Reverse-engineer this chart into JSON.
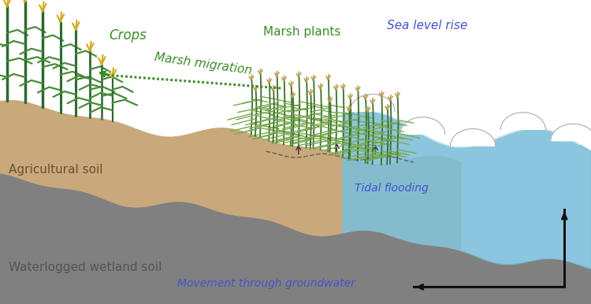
{
  "bg_color": "#ffffff",
  "soil_brown_color": "#c9a87c",
  "soil_grey_color": "#808080",
  "sea_blue_color": "#7bbfda",
  "crop_green_dark": "#2d6930",
  "crop_green_light": "#4a8c3a",
  "crop_yellow": "#d4a820",
  "marsh_green_dark": "#3a6e28",
  "marsh_green_light": "#7aaa50",
  "marsh_tan": "#b8a055",
  "text_green": "#3a8c28",
  "text_blue": "#4455cc",
  "text_brown": "#6b5030",
  "text_dark": "#333333",
  "arrow_dark": "#111111",
  "labels": {
    "crops": "Crops",
    "marsh_migration": "Marsh migration",
    "marsh_plants": "Marsh plants",
    "sea_level_rise": "Sea level rise",
    "agricultural_soil": "Agricultural soil",
    "waterlogged": "Waterlogged wetland soil",
    "tidal_flooding": "Tidal flooding",
    "groundwater": "Movement through groundwater"
  },
  "figsize": [
    7.5,
    3.86
  ],
  "dpi": 100
}
